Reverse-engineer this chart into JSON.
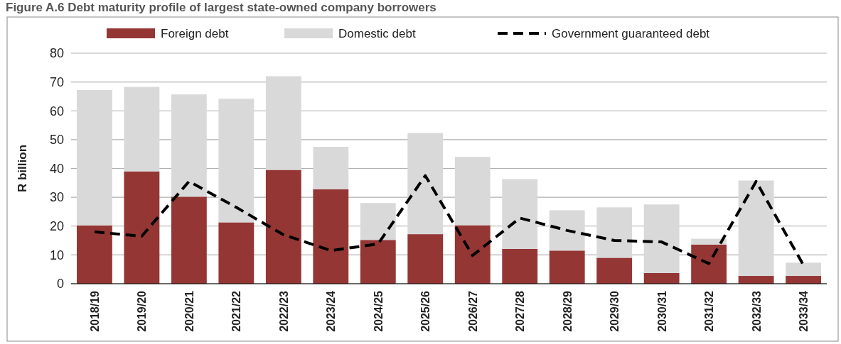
{
  "chart_data": {
    "type": "bar",
    "title": "Figure A.6 Debt maturity profile of largest state-owned company borrowers",
    "ylabel": "R billion",
    "categories": [
      "2018/19",
      "2019/20",
      "2020/21",
      "2021/22",
      "2022/23",
      "2023/24",
      "2024/25",
      "2025/26",
      "2026/27",
      "2027/28",
      "2028/29",
      "2029/30",
      "2030/31",
      "2031/32",
      "2032/33",
      "2033/34"
    ],
    "stacked": true,
    "series": [
      {
        "name": "Foreign debt",
        "color": "#943634",
        "values": [
          20.2,
          39,
          30.2,
          21.3,
          39.5,
          32.8,
          15.2,
          17.2,
          20.3,
          12.1,
          11.5,
          9,
          3.7,
          13.6,
          2.7,
          2.7
        ]
      },
      {
        "name": "Domestic debt",
        "color": "#d9d9d9",
        "values": [
          47,
          29.3,
          35.5,
          42.9,
          32.5,
          14.7,
          12.8,
          35.1,
          23.7,
          24.2,
          14,
          17.5,
          23.8,
          2,
          33.1,
          4.6
        ]
      },
      {
        "name": "Government guaranteed debt",
        "type": "line",
        "color": "#000000",
        "line_style": "dashed",
        "values": [
          18,
          16.5,
          35.5,
          26.5,
          17,
          11.5,
          13.8,
          37.5,
          9.8,
          22.8,
          18.5,
          15,
          14.5,
          7,
          35.5,
          6.5
        ]
      }
    ],
    "ylim": [
      0,
      80
    ],
    "yticks": [
      0,
      10,
      20,
      30,
      40,
      50,
      60,
      70,
      80
    ],
    "grid": "y",
    "legend": "top"
  }
}
